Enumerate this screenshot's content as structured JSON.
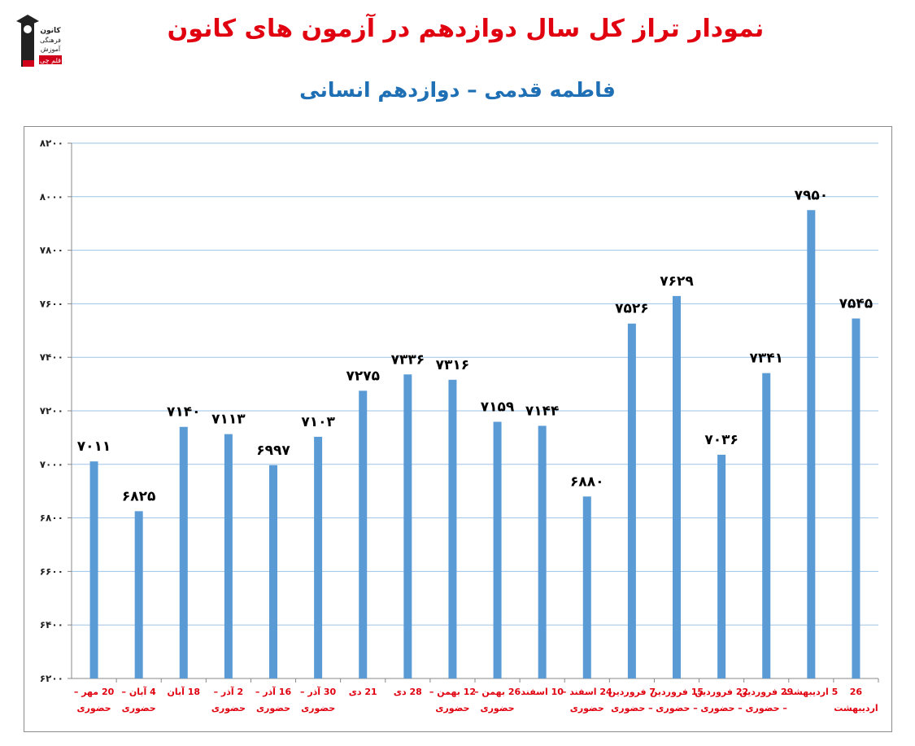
{
  "header": {
    "title": "نمودار تراز کل سال دوازدهم در آزمون های کانون",
    "subtitle": "فاطمه قدمی – دوازدهم انسانی",
    "logo_lines": [
      "کانون",
      "فرهنگی",
      "آموزش",
      "قلم چی"
    ]
  },
  "colors": {
    "title": "#e0000f",
    "subtitle": "#1f6fb5",
    "bar": "#5b9bd5",
    "grid": "#9dc3e6",
    "xlabel": "#e0000f"
  },
  "chart_data": {
    "type": "bar",
    "ylim": [
      6200,
      8200
    ],
    "yticks": [
      6200,
      6400,
      6600,
      6800,
      7000,
      7200,
      7400,
      7600,
      7800,
      8000,
      8200
    ],
    "ytick_labels": [
      "۶۲۰۰",
      "۶۴۰۰",
      "۶۶۰۰",
      "۶۸۰۰",
      "۷۰۰۰",
      "۷۲۰۰",
      "۷۴۰۰",
      "۷۶۰۰",
      "۷۸۰۰",
      "۸۰۰۰",
      "۸۲۰۰"
    ],
    "grid": true,
    "categories": [
      [
        "20 مهر –",
        "حضوری"
      ],
      [
        "4 آبان –",
        "حضوری"
      ],
      [
        "18 آبان"
      ],
      [
        "2 آذر –",
        "حضوری"
      ],
      [
        "16 آذر –",
        "حضوری"
      ],
      [
        "30 آذر –",
        "حضوری"
      ],
      [
        "21 دی"
      ],
      [
        "28 دی"
      ],
      [
        "12 بهمن –",
        "حضوری"
      ],
      [
        "26 بهمن –",
        "حضوری"
      ],
      [
        "10 اسفند"
      ],
      [
        "24 اسفند –",
        "حضوری"
      ],
      [
        "7 فروردین",
        "– حضوری"
      ],
      [
        "15 فروردین",
        "– حضوری"
      ],
      [
        "22 فروردین",
        "– حضوری"
      ],
      [
        "29 فروردین",
        "– حضوری"
      ],
      [
        "5 اردیبهشت"
      ],
      [
        "26",
        "اردیبهشت"
      ]
    ],
    "values": [
      7011,
      6825,
      7140,
      7113,
      6997,
      7103,
      7275,
      7336,
      7316,
      7159,
      7144,
      6880,
      7526,
      7629,
      7036,
      7341,
      7950,
      7545
    ],
    "value_labels": [
      "۷۰۱۱",
      "۶۸۲۵",
      "۷۱۴۰",
      "۷۱۱۳",
      "۶۹۹۷",
      "۷۱۰۳",
      "۷۲۷۵",
      "۷۳۳۶",
      "۷۳۱۶",
      "۷۱۵۹",
      "۷۱۴۴",
      "۶۸۸۰",
      "۷۵۲۶",
      "۷۶۲۹",
      "۷۰۳۶",
      "۷۳۴۱",
      "۷۹۵۰",
      "۷۵۴۵"
    ]
  }
}
